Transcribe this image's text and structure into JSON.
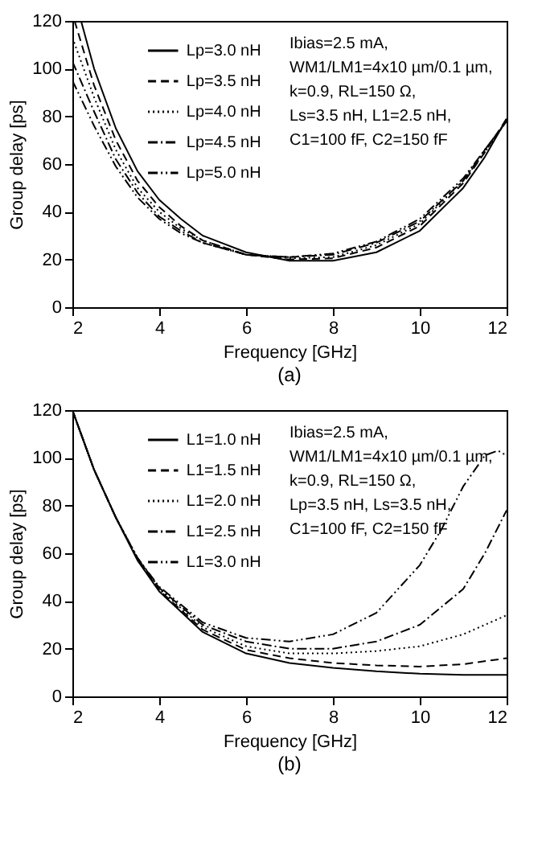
{
  "chart_data": [
    {
      "type": "line",
      "title": "(a)",
      "xlabel": "Frequency [GHz]",
      "ylabel": "Group delay [ps]",
      "xlim": [
        2,
        12
      ],
      "xticks": [
        2,
        4,
        6,
        8,
        10,
        12
      ],
      "ylim": [
        0,
        120
      ],
      "yticks": [
        0,
        20,
        40,
        60,
        80,
        100,
        120
      ],
      "grid": false,
      "legend": "top left",
      "marker": "none",
      "annotations": [
        "Ibias=2.5 mA,",
        "WM1/LM1=4x10 µm/0.1 µm,",
        "k=0.9, RL=150 Ω,",
        "Ls=3.5 nH, L1=2.5 nH,",
        "C1=100 fF, C2=150 fF"
      ],
      "series": [
        {
          "name": "Lp=3.0 nH",
          "color": "#000000",
          "line_style": "solid",
          "x": [
            2.2,
            2.5,
            3,
            3.5,
            4,
            4.5,
            5,
            6,
            7,
            8,
            9,
            10,
            11,
            11.5,
            12
          ],
          "values": [
            120,
            100,
            75,
            57,
            45,
            37,
            30,
            23,
            19.5,
            19.5,
            23,
            32,
            50,
            63,
            79
          ]
        },
        {
          "name": "Lp=3.5 nH",
          "color": "#000000",
          "line_style": "dashed",
          "x": [
            2.05,
            2.5,
            3,
            3.5,
            4,
            4.5,
            5,
            6,
            7,
            8,
            9,
            10,
            11,
            11.5,
            12
          ],
          "values": [
            120,
            93,
            70,
            53,
            42,
            34,
            28,
            22,
            20,
            20.5,
            25,
            34,
            52,
            65,
            79
          ]
        },
        {
          "name": "Lp=4.0 nH",
          "color": "#000000",
          "line_style": "dotted",
          "x": [
            2,
            2.5,
            3,
            3.5,
            4,
            4.5,
            5,
            6,
            7,
            8,
            9,
            10,
            11,
            11.5,
            12
          ],
          "values": [
            113,
            88,
            66,
            50,
            40,
            33,
            28,
            22,
            20.5,
            21,
            26,
            35,
            53,
            65,
            78
          ]
        },
        {
          "name": "Lp=4.5 nH",
          "color": "#000000",
          "line_style": "dashdot",
          "x": [
            2,
            2.5,
            3,
            3.5,
            4,
            4.5,
            5,
            6,
            7,
            8,
            9,
            10,
            11,
            11.5,
            12
          ],
          "values": [
            103,
            82,
            62,
            48,
            38,
            32,
            27,
            22,
            21,
            22,
            27,
            36,
            53,
            66,
            78
          ]
        },
        {
          "name": "Lp=5.0 nH",
          "color": "#000000",
          "line_style": "dashdotdot",
          "x": [
            2,
            2.5,
            3,
            3.5,
            4,
            4.5,
            5,
            6,
            7,
            8,
            9,
            10,
            11,
            11.5,
            12
          ],
          "values": [
            95,
            76,
            59,
            46,
            37,
            31,
            27,
            22,
            21,
            22.5,
            27.5,
            37,
            54,
            66,
            78
          ]
        }
      ]
    },
    {
      "type": "line",
      "title": "(b)",
      "xlabel": "Frequency [GHz]",
      "ylabel": "Group delay [ps]",
      "xlim": [
        2,
        12
      ],
      "xticks": [
        2,
        4,
        6,
        8,
        10,
        12
      ],
      "ylim": [
        0,
        120
      ],
      "yticks": [
        0,
        20,
        40,
        60,
        80,
        100,
        120
      ],
      "grid": false,
      "legend": "top left",
      "marker": "none",
      "annotations": [
        "Ibias=2.5 mA,",
        "WM1/LM1=4x10 µm/0.1 µm,",
        "k=0.9, RL=150 Ω,",
        "Lp=3.5 nH, Ls=3.5 nH,",
        "C1=100 fF, C2=150 fF"
      ],
      "series": [
        {
          "name": "L1=1.0 nH",
          "color": "#000000",
          "line_style": "solid",
          "x": [
            2,
            2.5,
            3,
            3.5,
            4,
            5,
            6,
            7,
            8,
            9,
            10,
            11,
            12
          ],
          "values": [
            120,
            95,
            75,
            57,
            44,
            27,
            18,
            14,
            12,
            10.5,
            9.5,
            9,
            9
          ]
        },
        {
          "name": "L1=1.5 nH",
          "color": "#000000",
          "line_style": "dashed",
          "x": [
            2,
            2.5,
            3,
            3.5,
            4,
            5,
            6,
            7,
            8,
            9,
            10,
            11,
            12
          ],
          "values": [
            120,
            95,
            75,
            57.5,
            44.5,
            28,
            19.5,
            16,
            14,
            13,
            12.5,
            13.5,
            16
          ]
        },
        {
          "name": "L1=2.0 nH",
          "color": "#000000",
          "line_style": "dotted",
          "x": [
            2,
            2.5,
            3,
            3.5,
            4,
            5,
            6,
            7,
            8,
            9,
            10,
            11,
            12
          ],
          "values": [
            120,
            95,
            75,
            58,
            45,
            29,
            21,
            18,
            18,
            19,
            21,
            26,
            34
          ]
        },
        {
          "name": "L1=2.5 nH",
          "color": "#000000",
          "line_style": "dashdot",
          "x": [
            2,
            2.5,
            3,
            3.5,
            4,
            5,
            6,
            7,
            8,
            9,
            10,
            11,
            11.5,
            12
          ],
          "values": [
            120,
            95,
            75,
            58,
            45.5,
            30,
            23,
            20,
            20,
            23,
            30,
            45,
            60,
            78
          ]
        },
        {
          "name": "L1=3.0 nH",
          "color": "#000000",
          "line_style": "dashdotdot",
          "x": [
            2,
            2.5,
            3,
            3.5,
            4,
            5,
            6,
            7,
            8,
            9,
            10,
            10.5,
            11,
            11.5,
            11.8,
            12
          ],
          "values": [
            120,
            95,
            75,
            58,
            46,
            31,
            24.5,
            23,
            26,
            35,
            55,
            70,
            88,
            101,
            103,
            101
          ]
        }
      ]
    }
  ]
}
